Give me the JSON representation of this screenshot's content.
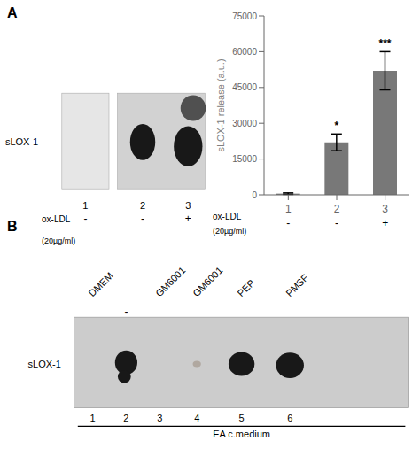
{
  "chart_data": [
    {
      "type": "blot",
      "title": "A",
      "ylabel": "sLOX-1",
      "categories": [
        "1",
        "2",
        "3"
      ],
      "colors": [
        null,
        "#181818",
        "#181818"
      ],
      "treatment": {
        "label": "ox-LDL",
        "dose": "(20µg/ml)",
        "signs": [
          "-",
          "-",
          "+"
        ]
      }
    },
    {
      "type": "bar",
      "categories": [
        "1",
        "2",
        "3"
      ],
      "values": [
        500,
        22000,
        52000
      ],
      "errors": [
        300,
        3500,
        8000
      ],
      "significance": [
        null,
        "*",
        "***"
      ],
      "color": "#787878",
      "ylabel": "sLOX-1 release (a.u.)",
      "ylim": [
        0,
        75000
      ],
      "yticks": [
        0,
        15000,
        30000,
        45000,
        60000,
        75000
      ],
      "treatment": {
        "label": "ox-LDL",
        "dose": "(20µg/ml)",
        "signs": [
          "-",
          "-",
          "+"
        ]
      }
    },
    {
      "type": "blot",
      "title": "B",
      "ylabel": "sLOX-1",
      "xlabel": "EA c.medium",
      "categories": [
        "1",
        "2",
        "3",
        "4",
        "5",
        "6"
      ],
      "treatments": [
        "DMEM",
        "-",
        "GM6001",
        "GM6001",
        "PEP",
        "PMSF"
      ],
      "colors": [
        null,
        "#181818",
        null,
        "#b0a8a0",
        "#181818",
        "#181818"
      ]
    }
  ]
}
